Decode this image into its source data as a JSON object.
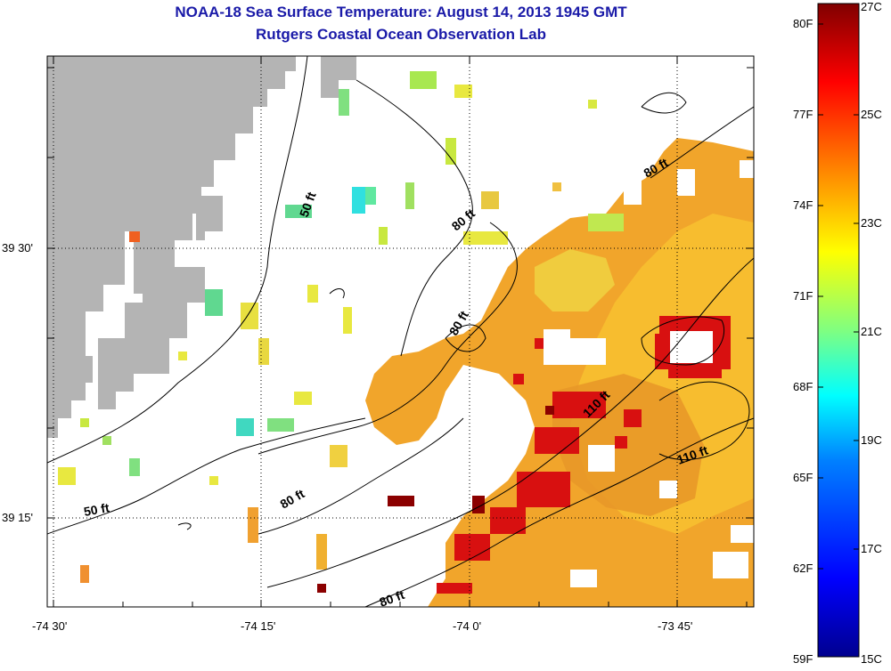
{
  "title": {
    "line1": "NOAA-18 Sea Surface Temperature:  August 14, 2013 1945 GMT",
    "line2": "Rutgers Coastal Ocean Observation Lab"
  },
  "axes": {
    "x_ticks": [
      "-74 30'",
      "-74 15'",
      "-74 0'",
      "-73 45'"
    ],
    "y_ticks": [
      "39 30'",
      "39 15'"
    ]
  },
  "contour_labels": [
    "50 ft",
    "80 ft",
    "80 ft",
    "80 ft",
    "110 ft",
    "110 ft",
    "50 ft",
    "80 ft",
    "80 ft"
  ],
  "colorbar": {
    "fahrenheit": [
      "80F",
      "77F",
      "74F",
      "71F",
      "68F",
      "65F",
      "62F",
      "59F"
    ],
    "celsius": [
      "27C",
      "25C",
      "23C",
      "21C",
      "19C",
      "17C",
      "15C"
    ],
    "range_c": [
      15,
      27
    ]
  },
  "colors": {
    "land": "#b4b4b4",
    "title": "#1a1aa8",
    "sst_warm": "#f0a020",
    "sst_hot": "#d01010",
    "sst_cool": "#c8e840"
  }
}
